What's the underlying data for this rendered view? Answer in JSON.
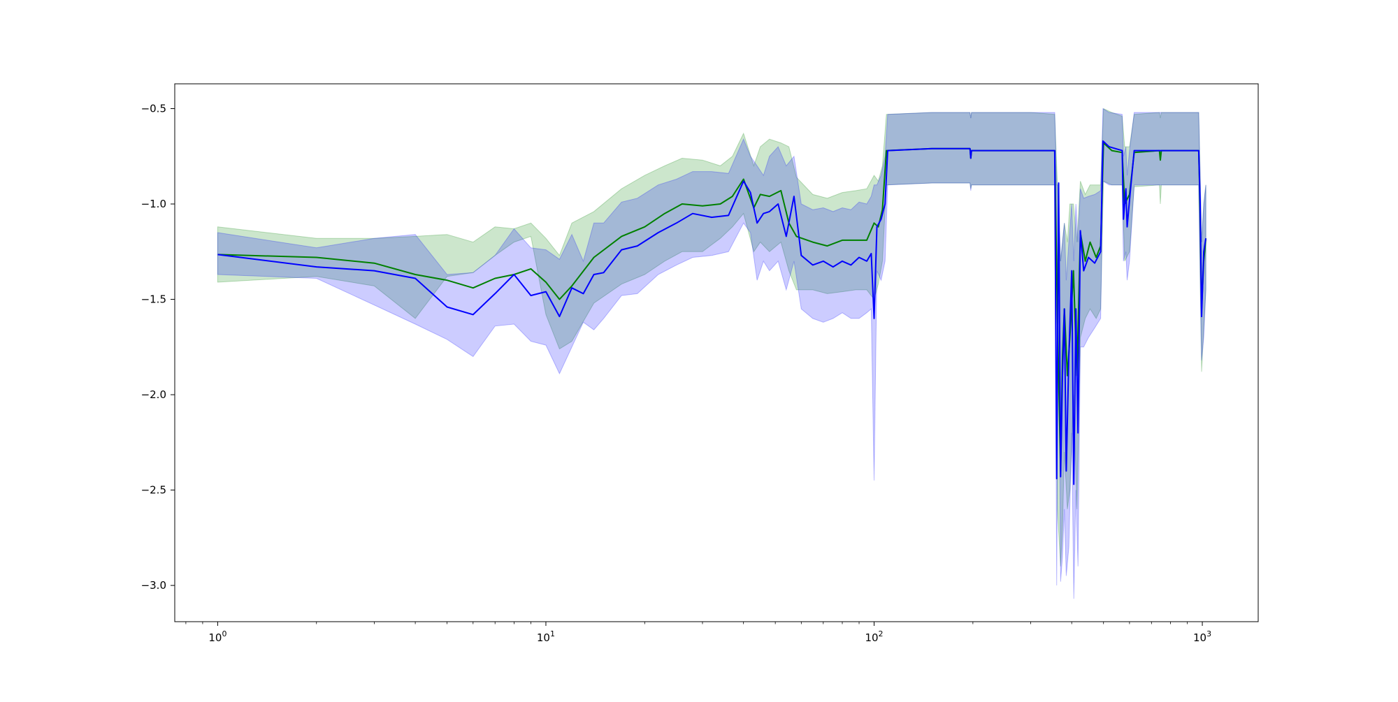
{
  "chart_data": {
    "type": "line",
    "x_scale": "log",
    "xlim": [
      0.74,
      1480
    ],
    "ylim": [
      -3.19,
      -0.37
    ],
    "x_ticks": [
      {
        "value": 1,
        "base": "10",
        "exp": "0"
      },
      {
        "value": 10,
        "base": "10",
        "exp": "1"
      },
      {
        "value": 100,
        "base": "10",
        "exp": "2"
      },
      {
        "value": 1000,
        "base": "10",
        "exp": "3"
      }
    ],
    "y_ticks": [
      {
        "value": -0.5,
        "label": "−0.5"
      },
      {
        "value": -1.0,
        "label": "−1.0"
      },
      {
        "value": -1.5,
        "label": "−1.5"
      },
      {
        "value": -2.0,
        "label": "−2.0"
      },
      {
        "value": -2.5,
        "label": "−2.5"
      },
      {
        "value": -3.0,
        "label": "−3.0"
      }
    ],
    "grid": false,
    "legend": "none",
    "series": [
      {
        "color": "#008000",
        "band_color": "#008000",
        "band_opacity": 0.2,
        "points": [
          [
            1,
            -1.265,
            -1.41,
            -1.12
          ],
          [
            2,
            -1.28,
            -1.38,
            -1.18
          ],
          [
            3,
            -1.31,
            -1.43,
            -1.18
          ],
          [
            4,
            -1.37,
            -1.6,
            -1.17
          ],
          [
            5,
            -1.4,
            -1.38,
            -1.16
          ],
          [
            6,
            -1.44,
            -1.36,
            -1.2
          ],
          [
            7,
            -1.39,
            -1.27,
            -1.12
          ],
          [
            8,
            -1.37,
            -1.2,
            -1.13
          ],
          [
            9,
            -1.34,
            -1.17,
            -1.1
          ],
          [
            10,
            -1.41,
            -1.58,
            -1.18
          ],
          [
            11,
            -1.5,
            -1.76,
            -1.27
          ],
          [
            12,
            -1.43,
            -1.72,
            -1.1
          ],
          [
            14,
            -1.28,
            -1.52,
            -1.04
          ],
          [
            17,
            -1.17,
            -1.42,
            -0.92
          ],
          [
            20,
            -1.12,
            -1.37,
            -0.85
          ],
          [
            23,
            -1.05,
            -1.3,
            -0.8
          ],
          [
            26,
            -1.0,
            -1.25,
            -0.76
          ],
          [
            30,
            -1.01,
            -1.25,
            -0.77
          ],
          [
            34,
            -1.0,
            -1.18,
            -0.8
          ],
          [
            37,
            -0.96,
            -1.12,
            -0.75
          ],
          [
            40,
            -0.87,
            -1.05,
            -0.63
          ],
          [
            43,
            -1.02,
            -1.25,
            -0.8
          ],
          [
            45,
            -0.95,
            -1.2,
            -0.7
          ],
          [
            48,
            -0.96,
            -1.25,
            -0.66
          ],
          [
            52,
            -0.93,
            -1.2,
            -0.68
          ],
          [
            55,
            -1.1,
            -1.35,
            -0.7
          ],
          [
            58,
            -1.17,
            -1.45,
            -0.86
          ],
          [
            65,
            -1.2,
            -1.45,
            -0.95
          ],
          [
            72,
            -1.22,
            -1.47,
            -0.97
          ],
          [
            80,
            -1.19,
            -1.46,
            -0.94
          ],
          [
            88,
            -1.19,
            -1.45,
            -0.93
          ],
          [
            95,
            -1.19,
            -1.45,
            -0.92
          ],
          [
            100,
            -1.1,
            -1.5,
            -0.85
          ],
          [
            103,
            -1.12,
            -1.42,
            -0.88
          ],
          [
            106,
            -1.03,
            -1.3,
            -0.8
          ],
          [
            109,
            -0.72,
            -0.9,
            -0.53
          ],
          [
            150,
            -0.71,
            -0.89,
            -0.52
          ],
          [
            196,
            -0.71,
            -0.89,
            -0.52
          ],
          [
            197,
            -0.76,
            -0.92,
            -0.55
          ],
          [
            198,
            -0.72,
            -0.9,
            -0.52
          ],
          [
            300,
            -0.72,
            -0.9,
            -0.52
          ],
          [
            355,
            -0.72,
            -0.9,
            -0.53
          ],
          [
            362,
            -1.6,
            -2.6,
            -0.9
          ],
          [
            370,
            -2.4,
            -2.9,
            -1.3
          ],
          [
            375,
            -1.8,
            -2.7,
            -1.2
          ],
          [
            380,
            -1.55,
            -2.3,
            -1.1
          ],
          [
            388,
            -1.9,
            -2.6,
            -1.2
          ],
          [
            395,
            -1.7,
            -2.5,
            -1.0
          ],
          [
            405,
            -1.35,
            -2.0,
            -1.0
          ],
          [
            415,
            -1.9,
            -2.6,
            -1.2
          ],
          [
            425,
            -1.15,
            -1.7,
            -0.88
          ],
          [
            440,
            -1.3,
            -1.6,
            -0.95
          ],
          [
            455,
            -1.2,
            -1.55,
            -0.9
          ],
          [
            475,
            -1.28,
            -1.6,
            -0.9
          ],
          [
            490,
            -1.22,
            -1.55,
            -0.9
          ],
          [
            500,
            -0.68,
            -0.88,
            -0.5
          ],
          [
            530,
            -0.72,
            -0.9,
            -0.52
          ],
          [
            570,
            -0.73,
            -0.9,
            -0.54
          ],
          [
            580,
            -1.0,
            -1.3,
            -0.7
          ],
          [
            600,
            -0.95,
            -1.25,
            -0.7
          ],
          [
            620,
            -0.73,
            -0.91,
            -0.53
          ],
          [
            740,
            -0.72,
            -0.9,
            -0.52
          ],
          [
            745,
            -0.77,
            -1.0,
            -0.55
          ],
          [
            750,
            -0.72,
            -0.9,
            -0.52
          ],
          [
            975,
            -0.72,
            -0.9,
            -0.52
          ],
          [
            985,
            -1.05,
            -1.4,
            -0.85
          ],
          [
            995,
            -1.55,
            -1.88,
            -1.2
          ],
          [
            1010,
            -1.3,
            -1.65,
            -1.0
          ],
          [
            1025,
            -1.18,
            -1.45,
            -0.9
          ]
        ]
      },
      {
        "color": "#0000ff",
        "band_color": "#0000ff",
        "band_opacity": 0.2,
        "points": [
          [
            1,
            -1.265,
            -1.37,
            -1.15
          ],
          [
            2,
            -1.33,
            -1.39,
            -1.23
          ],
          [
            3,
            -1.35,
            -1.53,
            -1.18
          ],
          [
            4,
            -1.39,
            -1.63,
            -1.16
          ],
          [
            5,
            -1.54,
            -1.71,
            -1.37
          ],
          [
            6,
            -1.58,
            -1.8,
            -1.36
          ],
          [
            7,
            -1.47,
            -1.64,
            -1.27
          ],
          [
            8,
            -1.37,
            -1.63,
            -1.13
          ],
          [
            9,
            -1.48,
            -1.72,
            -1.23
          ],
          [
            10,
            -1.46,
            -1.74,
            -1.24
          ],
          [
            11,
            -1.59,
            -1.89,
            -1.29
          ],
          [
            12,
            -1.44,
            -1.75,
            -1.16
          ],
          [
            13,
            -1.47,
            -1.62,
            -1.3
          ],
          [
            14,
            -1.37,
            -1.66,
            -1.1
          ],
          [
            15,
            -1.36,
            -1.6,
            -1.1
          ],
          [
            17,
            -1.24,
            -1.48,
            -0.99
          ],
          [
            19,
            -1.22,
            -1.47,
            -0.97
          ],
          [
            22,
            -1.15,
            -1.37,
            -0.9
          ],
          [
            25,
            -1.1,
            -1.32,
            -0.87
          ],
          [
            28,
            -1.05,
            -1.28,
            -0.83
          ],
          [
            32,
            -1.07,
            -1.27,
            -0.83
          ],
          [
            36,
            -1.06,
            -1.25,
            -0.84
          ],
          [
            40,
            -0.88,
            -1.1,
            -0.66
          ],
          [
            42,
            -0.94,
            -1.15,
            -0.75
          ],
          [
            44,
            -1.1,
            -1.4,
            -0.8
          ],
          [
            46,
            -1.05,
            -1.3,
            -0.85
          ],
          [
            48,
            -1.04,
            -1.35,
            -0.75
          ],
          [
            51,
            -1.0,
            -1.3,
            -0.7
          ],
          [
            54,
            -1.17,
            -1.45,
            -0.8
          ],
          [
            57,
            -0.96,
            -1.3,
            -0.75
          ],
          [
            60,
            -1.27,
            -1.55,
            -1.0
          ],
          [
            65,
            -1.32,
            -1.6,
            -1.03
          ],
          [
            70,
            -1.3,
            -1.62,
            -1.02
          ],
          [
            75,
            -1.33,
            -1.6,
            -1.04
          ],
          [
            80,
            -1.3,
            -1.57,
            -1.02
          ],
          [
            85,
            -1.32,
            -1.6,
            -1.03
          ],
          [
            90,
            -1.28,
            -1.6,
            -0.99
          ],
          [
            95,
            -1.3,
            -1.57,
            -1.0
          ],
          [
            98,
            -1.26,
            -1.55,
            -0.96
          ],
          [
            100,
            -1.6,
            -2.45,
            -0.9
          ],
          [
            102,
            -1.12,
            -1.35,
            -0.9
          ],
          [
            105,
            -1.08,
            -1.4,
            -0.85
          ],
          [
            108,
            -1.0,
            -1.3,
            -0.75
          ],
          [
            110,
            -0.72,
            -0.9,
            -0.53
          ],
          [
            150,
            -0.71,
            -0.89,
            -0.52
          ],
          [
            196,
            -0.71,
            -0.89,
            -0.52
          ],
          [
            197,
            -0.76,
            -0.93,
            -0.55
          ],
          [
            198,
            -0.72,
            -0.9,
            -0.52
          ],
          [
            300,
            -0.72,
            -0.9,
            -0.52
          ],
          [
            355,
            -0.72,
            -0.9,
            -0.52
          ],
          [
            360,
            -2.44,
            -3.0,
            -0.9
          ],
          [
            365,
            -0.89,
            -1.5,
            -0.9
          ],
          [
            370,
            -2.43,
            -2.98,
            -1.3
          ],
          [
            375,
            -1.9,
            -2.85,
            -1.2
          ],
          [
            380,
            -1.55,
            -2.6,
            -1.1
          ],
          [
            385,
            -2.4,
            -2.95,
            -1.4
          ],
          [
            392,
            -1.8,
            -2.8,
            -1.2
          ],
          [
            400,
            -1.35,
            -2.2,
            -1.0
          ],
          [
            406,
            -2.47,
            -3.07,
            -1.3
          ],
          [
            412,
            -1.55,
            -2.5,
            -1.0
          ],
          [
            418,
            -2.2,
            -2.9,
            -1.2
          ],
          [
            425,
            -1.14,
            -1.75,
            -0.92
          ],
          [
            435,
            -1.35,
            -1.75,
            -0.97
          ],
          [
            450,
            -1.28,
            -1.7,
            -0.96
          ],
          [
            470,
            -1.31,
            -1.65,
            -0.95
          ],
          [
            490,
            -1.25,
            -1.6,
            -0.93
          ],
          [
            498,
            -0.67,
            -0.88,
            -0.5
          ],
          [
            520,
            -0.7,
            -0.9,
            -0.52
          ],
          [
            570,
            -0.72,
            -0.9,
            -0.53
          ],
          [
            575,
            -1.08,
            -1.3,
            -0.75
          ],
          [
            585,
            -0.92,
            -1.25,
            -0.7
          ],
          [
            590,
            -1.12,
            -1.4,
            -0.85
          ],
          [
            600,
            -0.98,
            -1.3,
            -0.72
          ],
          [
            620,
            -0.72,
            -0.9,
            -0.52
          ],
          [
            800,
            -0.72,
            -0.9,
            -0.52
          ],
          [
            975,
            -0.72,
            -0.9,
            -0.52
          ],
          [
            985,
            -1.0,
            -1.4,
            -0.85
          ],
          [
            995,
            -1.59,
            -1.82,
            -1.2
          ],
          [
            1010,
            -1.25,
            -1.7,
            -1.0
          ],
          [
            1025,
            -1.18,
            -1.45,
            -0.9
          ]
        ]
      }
    ]
  }
}
